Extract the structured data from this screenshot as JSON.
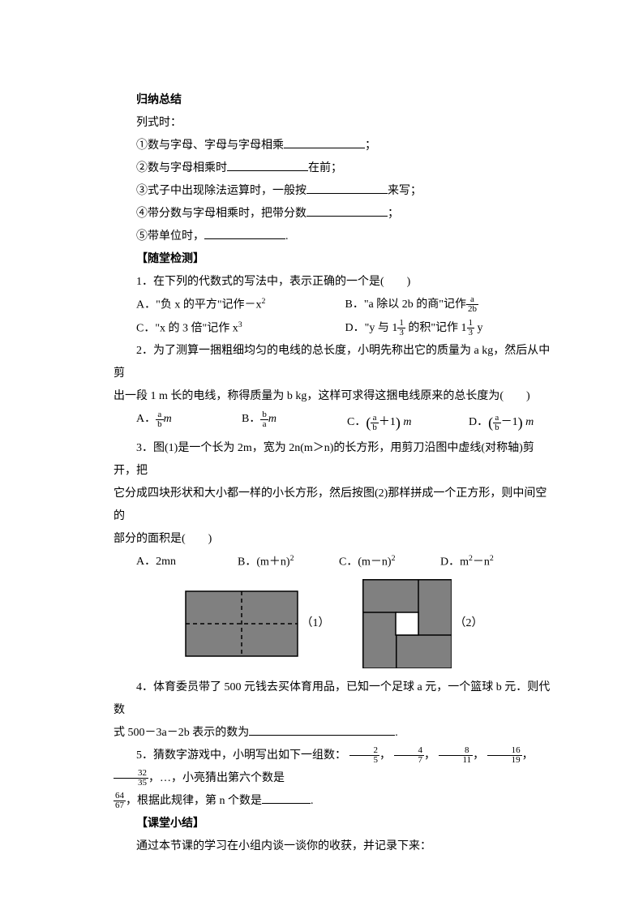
{
  "summary": {
    "title": "归纳总结",
    "line0": "列式时：",
    "line1_pre": "①数与字母、字母与字母相乘",
    "line1_post": "；",
    "line2_pre": "②数与字母相乘时",
    "line2_post": "在前；",
    "line3_pre": "③式子中出现除法运算时，一般按",
    "line3_post": "来写；",
    "line4_pre": "④带分数与字母相乘时，把带分数",
    "line4_post": "；",
    "line5_pre": "⑤带单位时，",
    "line5_post": "."
  },
  "quiz_title": "【随堂检测】",
  "q1": {
    "text": "1．在下列的代数式的写法中，表示正确的一个是(　　)",
    "A_pre": "A．\"负 x 的平方\"记作－x",
    "A_sup": "2",
    "B_pre": "B．\"a 除以 2b 的商\"记作",
    "B_frac_num": "a",
    "B_frac_den": "2b",
    "C_pre": "C．\"x 的 3 倍\"记作 x",
    "C_sup": "3",
    "D_pre": "D．\"y 与 1",
    "D_mid": " 的积\"记作 1",
    "D_post": " y",
    "D_frac_num": "1",
    "D_frac_den": "3"
  },
  "q2": {
    "line1": "2．为了测算一捆粗细均匀的电线的总长度，小明先称出它的质量为 a kg，然后从中剪",
    "line2": "出一段 1 m 长的电线，称得质量为 b kg，这样可求得这捆电线原来的总长度为(　　)",
    "A_pre": "A．",
    "A_num": "a",
    "A_den": "b",
    "A_post": "m",
    "B_pre": "B．",
    "B_num": "b",
    "B_den": "a",
    "B_post": "m",
    "C_pre": "C．",
    "C_num": "a",
    "C_den": "b",
    "C_mid": "＋1",
    "C_post": " m",
    "D_pre": "D．",
    "D_num": "a",
    "D_den": "b",
    "D_mid": "－1",
    "D_post": " m"
  },
  "q3": {
    "line1": "3．图(1)是一个长为 2m，宽为 2n(m＞n)的长方形，用剪刀沿图中虚线(对称轴)剪开，把",
    "line2": "它分成四块形状和大小都一样的小长方形，然后按图(2)那样拼成一个正方形，则中间空的",
    "line3": "部分的面积是(　　)",
    "A": "A．2mn",
    "B_pre": "B．(m＋n)",
    "B_sup": "2",
    "C_pre": "C．(m－n)",
    "C_sup": "2",
    "D_pre": "D．m",
    "D_sup1": "2",
    "D_mid": "－n",
    "D_sup2": "2",
    "label1": "（1）",
    "label2": "（2）"
  },
  "q4": {
    "line1": "4．体育委员带了 500 元钱去买体育用品，已知一个足球 a 元，一个篮球 b 元．则代数",
    "line2_pre": "式 500－3a－2b 表示的数为",
    "line2_post": "."
  },
  "q5": {
    "pre": "5．猜数字游戏中，小明写出如下一组数：",
    "f1n": "2",
    "f1d": "5",
    "f2n": "4",
    "f2d": "7",
    "f3n": "8",
    "f3d": "11",
    "f4n": "16",
    "f4d": "19",
    "f5n": "32",
    "f5d": "35",
    "mid": "，…，小亮猜出第六个数是",
    "f6n": "64",
    "f6d": "67",
    "line2_pre": "，根据此规律，第 n 个数是",
    "line2_post": "."
  },
  "closing": {
    "title": "【课堂小结】",
    "text": "通过本节课的学习在小组内谈一谈你的收获，并记录下来："
  },
  "fig": {
    "fill": "#808080",
    "stroke": "#000000",
    "bg": "#ffffff",
    "rect1_w": 140,
    "rect1_h": 82,
    "sq_w": 110,
    "sq_h": 110,
    "hole": 28
  }
}
